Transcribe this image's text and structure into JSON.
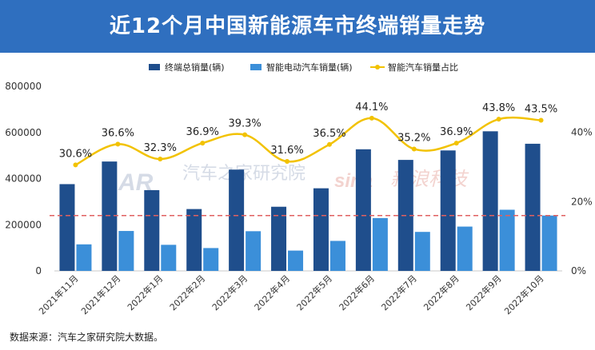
{
  "header": {
    "title": "近12个月中国新能源车市终端销量走势"
  },
  "source_note": "数据来源：汽车之家研究院大数据。",
  "watermarks": {
    "autohome": "汽车之家研究院",
    "sina": "新浪科技"
  },
  "colors": {
    "total": "#1f4e8c",
    "smart": "#3b8fd9",
    "ratio": "#f2c200",
    "reference": "#e06060",
    "title_bg": "#2f6fbf"
  },
  "chart_data": {
    "type": "bar",
    "categories": [
      "2021年11月",
      "2021年12月",
      "2022年1月",
      "2022年2月",
      "2022年3月",
      "2022年4月",
      "2022年5月",
      "2022年6月",
      "2022年7月",
      "2022年8月",
      "2022年9月",
      "2022年10月"
    ],
    "series": [
      {
        "name": "终端总销量(辆)",
        "type": "bar",
        "axis": "left",
        "values": [
          376000,
          474000,
          350000,
          268000,
          439000,
          278000,
          358000,
          527000,
          481000,
          522000,
          605000,
          551000
        ]
      },
      {
        "name": "智能电动汽车销量(辆)",
        "type": "bar",
        "axis": "left",
        "values": [
          115000,
          173000,
          113000,
          99000,
          172000,
          88000,
          130000,
          229000,
          169000,
          192000,
          265000,
          240000
        ]
      },
      {
        "name": "智能汽车销量占比",
        "type": "line",
        "axis": "right",
        "values": [
          30.6,
          36.6,
          32.3,
          36.9,
          39.3,
          31.6,
          36.5,
          44.1,
          35.2,
          36.9,
          43.8,
          43.5
        ],
        "labels": [
          "30.6%",
          "36.6%",
          "32.3%",
          "36.9%",
          "39.3%",
          "31.6%",
          "36.5%",
          "44.1%",
          "35.2%",
          "36.9%",
          "43.8%",
          "43.5%"
        ]
      }
    ],
    "y_left": {
      "range": [
        0,
        800000
      ],
      "ticks": [
        0,
        200000,
        400000,
        600000,
        800000
      ],
      "tick_labels": [
        "0",
        "200000",
        "400000",
        "600000",
        "800000"
      ]
    },
    "y_right": {
      "range": [
        0,
        53.3
      ],
      "ticks": [
        0,
        20,
        40
      ],
      "tick_labels": [
        "0%",
        "20%",
        "40%"
      ]
    },
    "reference_line": {
      "value": 240000,
      "axis": "left",
      "style": "dashed"
    },
    "legend_position": "top",
    "title": "近12个月中国新能源车市终端销量走势"
  }
}
